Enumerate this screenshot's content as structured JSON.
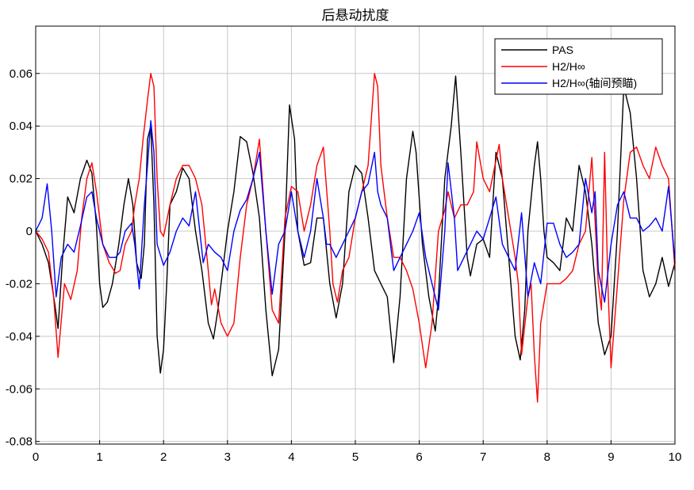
{
  "chart_data": {
    "type": "line",
    "title": "后悬动扰度",
    "xlabel": "",
    "ylabel": "",
    "xlim": [
      0,
      10
    ],
    "ylim": [
      -0.081,
      0.078
    ],
    "xticks": [
      0,
      1,
      2,
      3,
      4,
      5,
      6,
      7,
      8,
      9,
      10
    ],
    "xtick_labels": [
      "0",
      "1",
      "2",
      "3",
      "4",
      "5",
      "6",
      "7",
      "8",
      "9",
      "10"
    ],
    "yticks": [
      -0.08,
      -0.06,
      -0.04,
      -0.02,
      0,
      0.02,
      0.04,
      0.06
    ],
    "ytick_labels": [
      "-0.08",
      "-0.06",
      "-0.04",
      "-0.02",
      "0",
      "0.02",
      "0.04",
      "0.06"
    ],
    "grid": true,
    "legend_position": "top-right",
    "series": [
      {
        "name": "PAS",
        "color": "#000000",
        "x": [
          0,
          0.1,
          0.2,
          0.3,
          0.35,
          0.42,
          0.5,
          0.6,
          0.7,
          0.8,
          0.88,
          0.95,
          1.0,
          1.05,
          1.12,
          1.2,
          1.3,
          1.38,
          1.45,
          1.52,
          1.58,
          1.65,
          1.7,
          1.75,
          1.8,
          1.85,
          1.9,
          1.95,
          2.0,
          2.05,
          2.1,
          2.2,
          2.3,
          2.4,
          2.5,
          2.6,
          2.7,
          2.78,
          2.85,
          2.9,
          3.0,
          3.1,
          3.2,
          3.3,
          3.4,
          3.5,
          3.6,
          3.7,
          3.8,
          3.9,
          3.97,
          4.05,
          4.1,
          4.2,
          4.3,
          4.4,
          4.5,
          4.6,
          4.7,
          4.8,
          4.9,
          5.0,
          5.1,
          5.2,
          5.3,
          5.4,
          5.5,
          5.6,
          5.7,
          5.8,
          5.9,
          5.95,
          6.05,
          6.15,
          6.25,
          6.3,
          6.4,
          6.5,
          6.57,
          6.65,
          6.75,
          6.8,
          6.9,
          7.0,
          7.1,
          7.2,
          7.3,
          7.4,
          7.5,
          7.58,
          7.65,
          7.7,
          7.8,
          7.85,
          7.9,
          7.95,
          8.0,
          8.1,
          8.2,
          8.3,
          8.4,
          8.5,
          8.6,
          8.7,
          8.8,
          8.9,
          9.0,
          9.1,
          9.2,
          9.3,
          9.4,
          9.5,
          9.6,
          9.7,
          9.8,
          9.9,
          10.0
        ],
        "values": [
          0,
          -0.005,
          -0.012,
          -0.028,
          -0.037,
          -0.01,
          0.013,
          0.007,
          0.02,
          0.027,
          0.022,
          0.002,
          -0.02,
          -0.029,
          -0.027,
          -0.02,
          -0.005,
          0.01,
          0.02,
          0.01,
          -0.012,
          -0.018,
          -0.005,
          0.035,
          0.04,
          0.01,
          -0.04,
          -0.054,
          -0.045,
          -0.02,
          0.01,
          0.015,
          0.024,
          0.02,
          0.0,
          -0.015,
          -0.035,
          -0.041,
          -0.03,
          -0.02,
          0.0,
          0.015,
          0.036,
          0.034,
          0.022,
          0.005,
          -0.03,
          -0.055,
          -0.045,
          0.0,
          0.048,
          0.035,
          0.0,
          -0.013,
          -0.012,
          0.005,
          0.005,
          -0.02,
          -0.033,
          -0.02,
          0.015,
          0.025,
          0.022,
          0.005,
          -0.015,
          -0.02,
          -0.025,
          -0.05,
          -0.025,
          0.02,
          0.038,
          0.03,
          -0.005,
          -0.025,
          -0.038,
          -0.025,
          0.02,
          0.04,
          0.059,
          0.03,
          -0.01,
          -0.017,
          -0.005,
          -0.003,
          -0.01,
          0.03,
          0.02,
          -0.01,
          -0.04,
          -0.049,
          -0.03,
          0.0,
          0.025,
          0.034,
          0.02,
          0.0,
          -0.01,
          -0.012,
          -0.015,
          0.005,
          0.0,
          0.025,
          0.015,
          -0.005,
          -0.035,
          -0.047,
          -0.04,
          0.0,
          0.055,
          0.045,
          0.02,
          -0.015,
          -0.025,
          -0.02,
          -0.01,
          -0.021,
          -0.012
        ]
      },
      {
        "name": "H2/H∞",
        "color": "#ff0000",
        "x": [
          0,
          0.1,
          0.2,
          0.28,
          0.35,
          0.45,
          0.55,
          0.65,
          0.72,
          0.8,
          0.88,
          0.95,
          1.05,
          1.15,
          1.25,
          1.32,
          1.4,
          1.5,
          1.55,
          1.62,
          1.68,
          1.75,
          1.8,
          1.85,
          1.9,
          1.95,
          2.0,
          2.1,
          2.2,
          2.3,
          2.4,
          2.5,
          2.6,
          2.7,
          2.75,
          2.8,
          2.9,
          3.0,
          3.1,
          3.2,
          3.3,
          3.4,
          3.5,
          3.6,
          3.7,
          3.8,
          3.9,
          4.0,
          4.1,
          4.2,
          4.3,
          4.4,
          4.5,
          4.6,
          4.65,
          4.72,
          4.8,
          4.9,
          5.0,
          5.1,
          5.2,
          5.3,
          5.35,
          5.4,
          5.5,
          5.6,
          5.7,
          5.8,
          5.9,
          6.0,
          6.1,
          6.2,
          6.3,
          6.4,
          6.45,
          6.55,
          6.65,
          6.75,
          6.85,
          6.9,
          7.0,
          7.1,
          7.25,
          7.3,
          7.4,
          7.5,
          7.55,
          7.6,
          7.7,
          7.75,
          7.8,
          7.85,
          7.9,
          8.0,
          8.1,
          8.2,
          8.3,
          8.4,
          8.5,
          8.6,
          8.7,
          8.8,
          8.85,
          8.9,
          8.95,
          9.0,
          9.1,
          9.2,
          9.3,
          9.4,
          9.5,
          9.6,
          9.7,
          9.8,
          9.9,
          10.0
        ],
        "values": [
          0,
          -0.003,
          -0.008,
          -0.025,
          -0.048,
          -0.02,
          -0.026,
          -0.015,
          0.005,
          0.02,
          0.026,
          0.015,
          -0.005,
          -0.012,
          -0.016,
          -0.015,
          -0.005,
          0.0,
          0.01,
          0.02,
          0.035,
          0.05,
          0.06,
          0.055,
          0.02,
          0.0,
          -0.002,
          0.01,
          0.02,
          0.025,
          0.025,
          0.02,
          0.01,
          -0.015,
          -0.028,
          -0.022,
          -0.035,
          -0.04,
          -0.035,
          -0.01,
          0.01,
          0.02,
          0.035,
          0.0,
          -0.03,
          -0.035,
          0.005,
          0.017,
          0.015,
          0.0,
          0.01,
          0.025,
          0.032,
          0.0,
          -0.02,
          -0.027,
          -0.015,
          -0.01,
          0.005,
          0.015,
          0.025,
          0.06,
          0.055,
          0.025,
          0.005,
          -0.01,
          -0.01,
          -0.015,
          -0.022,
          -0.035,
          -0.052,
          -0.035,
          0.0,
          0.008,
          0.015,
          0.005,
          0.01,
          0.01,
          0.015,
          0.034,
          0.02,
          0.015,
          0.033,
          0.02,
          0.005,
          -0.01,
          -0.02,
          -0.047,
          -0.025,
          -0.02,
          -0.047,
          -0.065,
          -0.035,
          -0.02,
          -0.02,
          -0.02,
          -0.018,
          -0.015,
          -0.005,
          0.0,
          0.028,
          -0.02,
          -0.03,
          0.03,
          -0.02,
          -0.052,
          -0.02,
          0.012,
          0.03,
          0.032,
          0.025,
          0.02,
          0.032,
          0.025,
          0.02,
          -0.015
        ]
      },
      {
        "name": "H2/H∞(轴间预瞄)",
        "color": "#0000ff",
        "x": [
          0,
          0.1,
          0.18,
          0.25,
          0.32,
          0.4,
          0.5,
          0.6,
          0.7,
          0.8,
          0.88,
          0.95,
          1.05,
          1.15,
          1.25,
          1.32,
          1.4,
          1.5,
          1.55,
          1.62,
          1.7,
          1.75,
          1.8,
          1.85,
          1.9,
          2.0,
          2.1,
          2.2,
          2.3,
          2.4,
          2.5,
          2.62,
          2.7,
          2.8,
          2.9,
          3.0,
          3.1,
          3.2,
          3.3,
          3.4,
          3.5,
          3.55,
          3.6,
          3.7,
          3.8,
          3.9,
          4.0,
          4.1,
          4.2,
          4.3,
          4.4,
          4.5,
          4.55,
          4.6,
          4.7,
          4.8,
          4.9,
          5.0,
          5.1,
          5.2,
          5.3,
          5.35,
          5.4,
          5.5,
          5.6,
          5.7,
          5.8,
          5.9,
          6.0,
          6.1,
          6.2,
          6.3,
          6.4,
          6.45,
          6.55,
          6.6,
          6.7,
          6.8,
          6.9,
          7.0,
          7.1,
          7.2,
          7.3,
          7.4,
          7.5,
          7.6,
          7.7,
          7.8,
          7.9,
          8.0,
          8.1,
          8.2,
          8.3,
          8.4,
          8.5,
          8.6,
          8.7,
          8.75,
          8.8,
          8.9,
          9.0,
          9.1,
          9.2,
          9.3,
          9.4,
          9.5,
          9.6,
          9.7,
          9.8,
          9.9,
          10.0
        ],
        "values": [
          0,
          0.005,
          0.018,
          0.0,
          -0.025,
          -0.01,
          -0.005,
          -0.008,
          0.002,
          0.013,
          0.015,
          0.005,
          -0.005,
          -0.01,
          -0.01,
          -0.008,
          0.0,
          0.003,
          -0.005,
          -0.022,
          0.01,
          0.025,
          0.042,
          0.03,
          -0.005,
          -0.013,
          -0.008,
          0.0,
          0.005,
          0.002,
          0.015,
          -0.012,
          -0.005,
          -0.008,
          -0.01,
          -0.015,
          0.0,
          0.008,
          0.012,
          0.02,
          0.03,
          0.015,
          0.0,
          -0.024,
          -0.005,
          0.0,
          0.015,
          0.0,
          -0.01,
          0.0,
          0.02,
          0.005,
          -0.005,
          -0.005,
          -0.01,
          -0.005,
          0.0,
          0.005,
          0.015,
          0.018,
          0.03,
          0.015,
          0.01,
          0.005,
          -0.015,
          -0.01,
          -0.005,
          0.0,
          0.007,
          -0.01,
          -0.02,
          -0.03,
          0.0,
          0.026,
          0.005,
          -0.015,
          -0.01,
          -0.005,
          0.0,
          -0.003,
          0.005,
          0.013,
          -0.005,
          -0.01,
          -0.015,
          0.007,
          -0.025,
          -0.012,
          -0.02,
          0.003,
          0.003,
          -0.005,
          -0.01,
          -0.008,
          -0.005,
          0.02,
          0.007,
          0.015,
          -0.015,
          -0.027,
          -0.005,
          0.01,
          0.015,
          0.005,
          0.005,
          0.0,
          0.002,
          0.005,
          0.0,
          0.017,
          -0.012
        ]
      }
    ]
  }
}
